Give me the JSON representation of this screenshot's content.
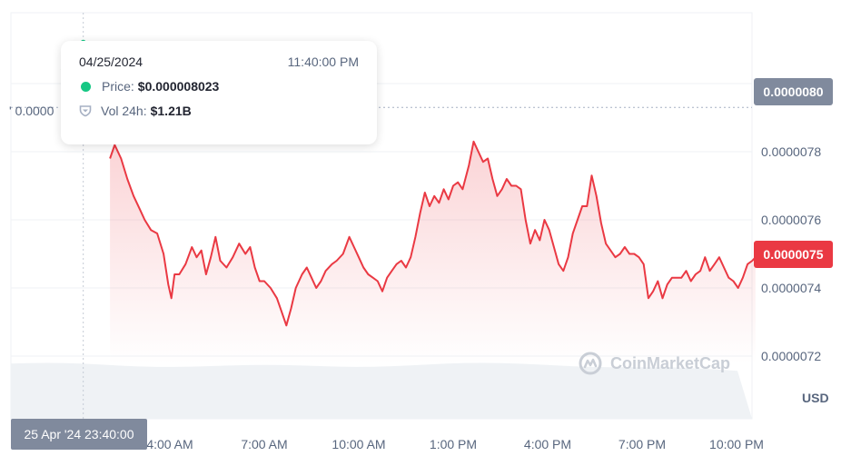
{
  "chart_data": {
    "type": "area",
    "x_unit": "local time",
    "y_unit": "USD",
    "x_ticks": [
      "4:00 AM",
      "7:00 AM",
      "10:00 AM",
      "1:00 PM",
      "4:00 PM",
      "7:00 PM",
      "10:00 PM"
    ],
    "y_ticks": [
      "0.0000072",
      "0.0000074",
      "0.0000076",
      "0.0000078"
    ],
    "y_tick_values": [
      7.2e-06,
      7.4e-06,
      7.6e-06,
      7.8e-06
    ],
    "ylim": [
      7e-06,
      8.2e-06
    ],
    "x_range_hours": [
      0.5,
      22.6
    ],
    "series": [
      {
        "color": "#ea3943",
        "points": [
          [
            2.1,
            7.78e-06
          ],
          [
            2.25,
            7.82e-06
          ],
          [
            2.45,
            7.78e-06
          ],
          [
            2.65,
            7.72e-06
          ],
          [
            2.85,
            7.67e-06
          ],
          [
            3.05,
            7.63e-06
          ],
          [
            3.2,
            7.6e-06
          ],
          [
            3.4,
            7.57e-06
          ],
          [
            3.6,
            7.56e-06
          ],
          [
            3.8,
            7.5e-06
          ],
          [
            3.95,
            7.41e-06
          ],
          [
            4.05,
            7.37e-06
          ],
          [
            4.15,
            7.44e-06
          ],
          [
            4.3,
            7.44e-06
          ],
          [
            4.5,
            7.47e-06
          ],
          [
            4.7,
            7.52e-06
          ],
          [
            4.85,
            7.49e-06
          ],
          [
            5.0,
            7.51e-06
          ],
          [
            5.15,
            7.44e-06
          ],
          [
            5.3,
            7.49e-06
          ],
          [
            5.45,
            7.55e-06
          ],
          [
            5.6,
            7.48e-06
          ],
          [
            5.8,
            7.46e-06
          ],
          [
            6.0,
            7.49e-06
          ],
          [
            6.2,
            7.53e-06
          ],
          [
            6.4,
            7.5e-06
          ],
          [
            6.55,
            7.52e-06
          ],
          [
            6.7,
            7.46e-06
          ],
          [
            6.85,
            7.42e-06
          ],
          [
            7.0,
            7.42e-06
          ],
          [
            7.2,
            7.4e-06
          ],
          [
            7.4,
            7.37e-06
          ],
          [
            7.55,
            7.33e-06
          ],
          [
            7.7,
            7.29e-06
          ],
          [
            7.85,
            7.34e-06
          ],
          [
            8.0,
            7.4e-06
          ],
          [
            8.2,
            7.44e-06
          ],
          [
            8.35,
            7.46e-06
          ],
          [
            8.5,
            7.43e-06
          ],
          [
            8.65,
            7.4e-06
          ],
          [
            8.8,
            7.42e-06
          ],
          [
            8.95,
            7.45e-06
          ],
          [
            9.15,
            7.47e-06
          ],
          [
            9.3,
            7.48e-06
          ],
          [
            9.5,
            7.5e-06
          ],
          [
            9.7,
            7.55e-06
          ],
          [
            9.85,
            7.52e-06
          ],
          [
            10.0,
            7.49e-06
          ],
          [
            10.15,
            7.46e-06
          ],
          [
            10.3,
            7.44e-06
          ],
          [
            10.45,
            7.43e-06
          ],
          [
            10.6,
            7.42e-06
          ],
          [
            10.75,
            7.39e-06
          ],
          [
            10.9,
            7.43e-06
          ],
          [
            11.05,
            7.45e-06
          ],
          [
            11.2,
            7.47e-06
          ],
          [
            11.35,
            7.48e-06
          ],
          [
            11.5,
            7.46e-06
          ],
          [
            11.65,
            7.49e-06
          ],
          [
            11.8,
            7.55e-06
          ],
          [
            11.95,
            7.62e-06
          ],
          [
            12.1,
            7.68e-06
          ],
          [
            12.25,
            7.64e-06
          ],
          [
            12.4,
            7.67e-06
          ],
          [
            12.55,
            7.65e-06
          ],
          [
            12.7,
            7.69e-06
          ],
          [
            12.85,
            7.66e-06
          ],
          [
            13.0,
            7.7e-06
          ],
          [
            13.15,
            7.71e-06
          ],
          [
            13.3,
            7.69e-06
          ],
          [
            13.5,
            7.76e-06
          ],
          [
            13.65,
            7.83e-06
          ],
          [
            13.8,
            7.8e-06
          ],
          [
            13.95,
            7.77e-06
          ],
          [
            14.1,
            7.78e-06
          ],
          [
            14.25,
            7.72e-06
          ],
          [
            14.4,
            7.67e-06
          ],
          [
            14.55,
            7.69e-06
          ],
          [
            14.7,
            7.72e-06
          ],
          [
            14.85,
            7.7e-06
          ],
          [
            15.0,
            7.7e-06
          ],
          [
            15.15,
            7.69e-06
          ],
          [
            15.3,
            7.6e-06
          ],
          [
            15.45,
            7.53e-06
          ],
          [
            15.6,
            7.57e-06
          ],
          [
            15.75,
            7.54e-06
          ],
          [
            15.9,
            7.6e-06
          ],
          [
            16.05,
            7.57e-06
          ],
          [
            16.2,
            7.52e-06
          ],
          [
            16.35,
            7.47e-06
          ],
          [
            16.5,
            7.45e-06
          ],
          [
            16.65,
            7.49e-06
          ],
          [
            16.8,
            7.56e-06
          ],
          [
            16.95,
            7.6e-06
          ],
          [
            17.1,
            7.64e-06
          ],
          [
            17.25,
            7.64e-06
          ],
          [
            17.4,
            7.73e-06
          ],
          [
            17.55,
            7.67e-06
          ],
          [
            17.7,
            7.59e-06
          ],
          [
            17.85,
            7.53e-06
          ],
          [
            18.0,
            7.51e-06
          ],
          [
            18.15,
            7.49e-06
          ],
          [
            18.3,
            7.5e-06
          ],
          [
            18.45,
            7.52e-06
          ],
          [
            18.6,
            7.5e-06
          ],
          [
            18.75,
            7.5e-06
          ],
          [
            18.9,
            7.49e-06
          ],
          [
            19.05,
            7.47e-06
          ],
          [
            19.2,
            7.37e-06
          ],
          [
            19.35,
            7.39e-06
          ],
          [
            19.5,
            7.42e-06
          ],
          [
            19.65,
            7.37e-06
          ],
          [
            19.8,
            7.41e-06
          ],
          [
            19.95,
            7.43e-06
          ],
          [
            20.1,
            7.43e-06
          ],
          [
            20.25,
            7.43e-06
          ],
          [
            20.4,
            7.45e-06
          ],
          [
            20.55,
            7.42e-06
          ],
          [
            20.7,
            7.44e-06
          ],
          [
            20.85,
            7.45e-06
          ],
          [
            21.0,
            7.49e-06
          ],
          [
            21.15,
            7.45e-06
          ],
          [
            21.3,
            7.47e-06
          ],
          [
            21.45,
            7.49e-06
          ],
          [
            21.6,
            7.46e-06
          ],
          [
            21.75,
            7.43e-06
          ],
          [
            21.9,
            7.42e-06
          ],
          [
            22.05,
            7.4e-06
          ],
          [
            22.2,
            7.43e-06
          ],
          [
            22.35,
            7.47e-06
          ],
          [
            22.5,
            7.48e-06
          ],
          [
            22.6,
            7.49e-06
          ]
        ]
      }
    ],
    "green_segment": {
      "color": "#16c784",
      "points": [
        [
          0.55,
          8.04e-06
        ],
        [
          0.7,
          8.05e-06
        ],
        [
          0.85,
          8.06e-06
        ],
        [
          1.0,
          8.05e-06
        ],
        [
          1.15,
          8.08e-06
        ],
        [
          1.25,
          8.12e-06
        ]
      ]
    },
    "volume_color": "#eff2f5",
    "dotted_line_value": 7.93e-06,
    "grid": true,
    "grid_color": "#eff2f5"
  },
  "tooltip": {
    "date": "04/25/2024",
    "time": "11:40:00 PM",
    "price_label": "Price:",
    "price_value": "$0.000008023",
    "vol_label": "Vol 24h:",
    "vol_value": "$1.21B"
  },
  "cursor_time_label": "25 Apr '24 23:40:00",
  "cursor_price_label": "0.0000080",
  "current_price_label": "0.0000075",
  "cut_left_label": "' 0.0000",
  "currency_label": "USD",
  "watermark": "CoinMarketCap"
}
